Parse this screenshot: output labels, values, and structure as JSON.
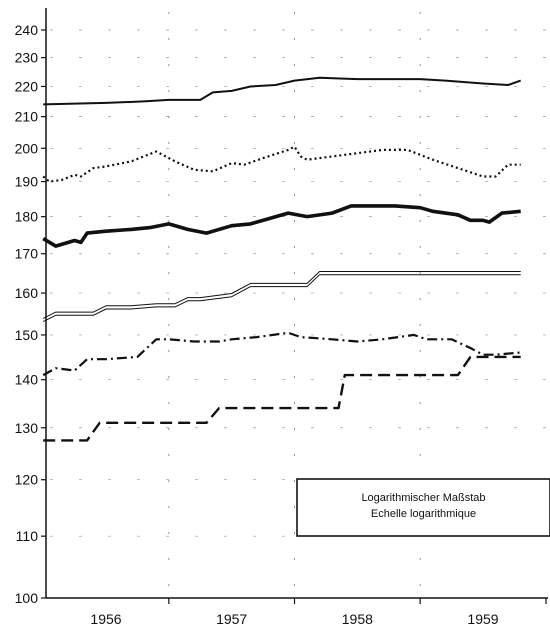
{
  "chart_data": {
    "type": "line",
    "title": "",
    "xlabel": "",
    "ylabel": "",
    "y_scale": "log",
    "ylim": [
      100,
      245
    ],
    "xlim": [
      1955.5,
      1959.6
    ],
    "grid": true,
    "y_ticks": [
      100,
      110,
      120,
      130,
      140,
      150,
      160,
      170,
      180,
      190,
      200,
      210,
      220,
      230,
      240
    ],
    "x_ticks": [
      {
        "label": "1956",
        "value": 1956.0
      },
      {
        "label": "1957",
        "value": 1957.0
      },
      {
        "label": "1958",
        "value": 1958.0
      },
      {
        "label": "1959",
        "value": 1959.0
      }
    ],
    "legend": {
      "placement": "lower-right",
      "lines": [
        "Logarithmischer Maßstab",
        "Echelle logarithmique"
      ]
    },
    "series": [
      {
        "style": "solid",
        "color": "#111111",
        "x": [
          1955.5,
          1956.0,
          1956.3,
          1956.5,
          1956.75,
          1956.85,
          1957.0,
          1957.15,
          1957.35,
          1957.5,
          1957.7,
          1958.0,
          1958.2,
          1958.5,
          1958.7,
          1959.0,
          1959.2,
          1959.3
        ],
        "y": [
          214,
          214.5,
          215,
          215.5,
          215.5,
          218,
          218.5,
          220,
          220.5,
          222,
          223,
          222.5,
          222.5,
          222.5,
          222,
          221,
          220.5,
          222
        ]
      },
      {
        "style": "dotted",
        "color": "#111111",
        "x": [
          1955.5,
          1955.55,
          1955.65,
          1955.75,
          1955.8,
          1955.9,
          1956.0,
          1956.2,
          1956.4,
          1956.55,
          1956.7,
          1956.85,
          1957.0,
          1957.1,
          1957.25,
          1957.45,
          1957.5,
          1957.55,
          1957.6,
          1957.7,
          1958.0,
          1958.2,
          1958.4,
          1958.6,
          1958.8,
          1959.0,
          1959.1,
          1959.2,
          1959.3
        ],
        "y": [
          191.5,
          190,
          190.5,
          192,
          191.5,
          194,
          194.5,
          196,
          199,
          196,
          193.5,
          193,
          195.5,
          195,
          197,
          199.5,
          200.5,
          197.5,
          196.5,
          197,
          198.5,
          199.5,
          199.5,
          196.5,
          194,
          191.5,
          191.5,
          195,
          195
        ]
      },
      {
        "style": "thick-solid",
        "color": "#111111",
        "x": [
          1955.5,
          1955.6,
          1955.75,
          1955.8,
          1955.85,
          1956.0,
          1956.2,
          1956.35,
          1956.5,
          1956.65,
          1956.8,
          1957.0,
          1957.15,
          1957.3,
          1957.45,
          1957.6,
          1957.8,
          1957.95,
          1958.1,
          1958.3,
          1958.5,
          1958.6,
          1958.8,
          1958.9,
          1959.0,
          1959.05,
          1959.15,
          1959.3
        ],
        "y": [
          174,
          172,
          173.5,
          173,
          175.5,
          176,
          176.5,
          177,
          178,
          176.5,
          175.5,
          177.5,
          178,
          179.5,
          181,
          180,
          181,
          183,
          183,
          183,
          182.5,
          181.5,
          180.5,
          179,
          179,
          178.5,
          181,
          181.5
        ]
      },
      {
        "style": "double-solid",
        "color": "#111111",
        "x": [
          1955.5,
          1955.6,
          1955.75,
          1955.9,
          1956.0,
          1956.2,
          1956.4,
          1956.55,
          1956.65,
          1956.75,
          1957.0,
          1957.15,
          1957.3,
          1957.45,
          1957.6,
          1957.7,
          1958.0,
          1958.5,
          1959.0,
          1959.3
        ],
        "y": [
          153.5,
          155,
          155,
          155,
          156.5,
          156.5,
          157,
          157,
          158.5,
          158.5,
          159.5,
          162,
          162,
          162,
          162,
          165,
          165,
          165,
          165,
          165
        ]
      },
      {
        "style": "dash-dot",
        "color": "#111111",
        "x": [
          1955.5,
          1955.6,
          1955.75,
          1955.85,
          1956.0,
          1956.25,
          1956.4,
          1956.5,
          1956.7,
          1956.9,
          1957.0,
          1957.2,
          1957.45,
          1957.55,
          1957.8,
          1958.0,
          1958.2,
          1958.45,
          1958.55,
          1958.75,
          1958.9,
          1959.0,
          1959.1,
          1959.3
        ],
        "y": [
          141,
          142.5,
          142,
          144.5,
          144.5,
          145,
          149,
          149,
          148.5,
          148.5,
          149,
          149.5,
          150.5,
          149.5,
          149,
          148.5,
          149,
          150,
          149,
          149,
          147,
          145.5,
          145.5,
          146
        ]
      },
      {
        "style": "dashed",
        "color": "#111111",
        "x": [
          1955.5,
          1955.85,
          1955.95,
          1956.0,
          1956.45,
          1956.5,
          1956.8,
          1956.9,
          1957.0,
          1957.4,
          1957.5,
          1957.85,
          1957.9,
          1958.0,
          1958.45,
          1958.5,
          1958.8,
          1958.9,
          1959.0,
          1959.3
        ],
        "y": [
          127.5,
          127.5,
          131,
          131,
          131,
          131,
          131,
          134,
          134,
          134,
          134,
          134,
          141,
          141,
          141,
          141,
          141,
          145,
          145,
          145
        ]
      }
    ]
  }
}
